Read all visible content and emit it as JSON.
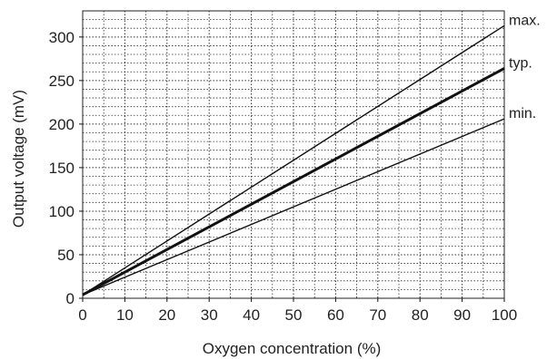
{
  "chart_data": {
    "type": "line",
    "title": "",
    "xlabel": "Oxygen concentration (%)",
    "ylabel": "Output voltage (mV)",
    "xlim": [
      0,
      100
    ],
    "ylim": [
      0,
      330
    ],
    "xticks": [
      0,
      10,
      20,
      30,
      40,
      50,
      60,
      70,
      80,
      90,
      100
    ],
    "yticks": [
      0,
      50,
      100,
      150,
      200,
      250,
      300
    ],
    "grid": "dotted; major + minor",
    "legend": "none — series labels placed at right end of each line",
    "series": [
      {
        "name": "max.",
        "x": [
          0,
          100
        ],
        "y": [
          4,
          313
        ],
        "emphasis": "thin"
      },
      {
        "name": "typ.",
        "x": [
          0,
          100
        ],
        "y": [
          4,
          264
        ],
        "emphasis": "bold"
      },
      {
        "name": "min.",
        "x": [
          0,
          100
        ],
        "y": [
          4,
          206
        ],
        "emphasis": "thin"
      }
    ],
    "colors": {
      "line": "#111111",
      "grid": "#333333",
      "text": "#222222"
    }
  }
}
